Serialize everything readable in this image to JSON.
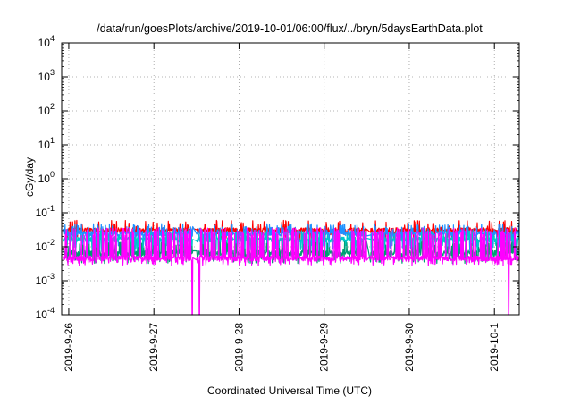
{
  "chart_data": {
    "type": "line",
    "title": "/data/run/goesPlots/archive/2019-10-01/06:00/flux/../bryn/5daysEarthData.plot",
    "xlabel": "Coordinated Universal Time (UTC)",
    "ylabel": "cGy/day",
    "yscale": "log",
    "ylim": [
      0.0001,
      10000
    ],
    "xlim": [
      "2019-09-25T22:00",
      "2019-10-01T07:00"
    ],
    "y_ticks": [
      {
        "value": 0.0001,
        "base": "10",
        "exp": "-4"
      },
      {
        "value": 0.001,
        "base": "10",
        "exp": "-3"
      },
      {
        "value": 0.01,
        "base": "10",
        "exp": "-2"
      },
      {
        "value": 0.1,
        "base": "10",
        "exp": "-1"
      },
      {
        "value": 1,
        "base": "10",
        "exp": "0"
      },
      {
        "value": 10,
        "base": "10",
        "exp": "1"
      },
      {
        "value": 100,
        "base": "10",
        "exp": "2"
      },
      {
        "value": 1000,
        "base": "10",
        "exp": "3"
      },
      {
        "value": 10000,
        "base": "10",
        "exp": "4"
      }
    ],
    "x_ticks": [
      {
        "value": "2019-09-26T00:00",
        "label": "2019-9-26"
      },
      {
        "value": "2019-09-27T00:00",
        "label": "2019-9-27"
      },
      {
        "value": "2019-09-28T00:00",
        "label": "2019-9-28"
      },
      {
        "value": "2019-09-29T00:00",
        "label": "2019-9-29"
      },
      {
        "value": "2019-09-30T00:00",
        "label": "2019-9-30"
      },
      {
        "value": "2019-10-01T00:00",
        "label": "2019-10-1"
      }
    ],
    "grid": true,
    "legend": "none",
    "gaps": [
      {
        "from": "2019-09-27T11:00",
        "to": "2019-09-27T12:00"
      },
      {
        "from": "2019-09-29T12:00",
        "to": "2019-09-29T13:00"
      }
    ],
    "series": [
      {
        "color": "#ff0000",
        "typical": 0.03,
        "low": 0.022,
        "high": 0.05,
        "spike_prob": 0.15,
        "spike_low": 0.02
      },
      {
        "color": "#1e90ff",
        "typical": 0.024,
        "low": 0.015,
        "high": 0.04,
        "spike_prob": 0.25,
        "spike_low": 0.008
      },
      {
        "color": "#00c8c8",
        "typical": 0.016,
        "low": 0.011,
        "high": 0.025,
        "spike_prob": 0.2,
        "spike_low": 0.006
      },
      {
        "color": "#009e73",
        "typical": 0.0065,
        "low": 0.005,
        "high": 0.012,
        "spike_prob": 0.3,
        "spike_low": 0.004
      },
      {
        "color": "#ff00ff",
        "typical": 0.0045,
        "low": 0.0035,
        "high": 0.03,
        "spike_prob": 0.4,
        "spike_low": 0.0035,
        "dropouts": [
          "2019-09-27T10:48",
          "2019-09-27T12:48",
          "2019-10-01T04:00"
        ]
      }
    ]
  }
}
